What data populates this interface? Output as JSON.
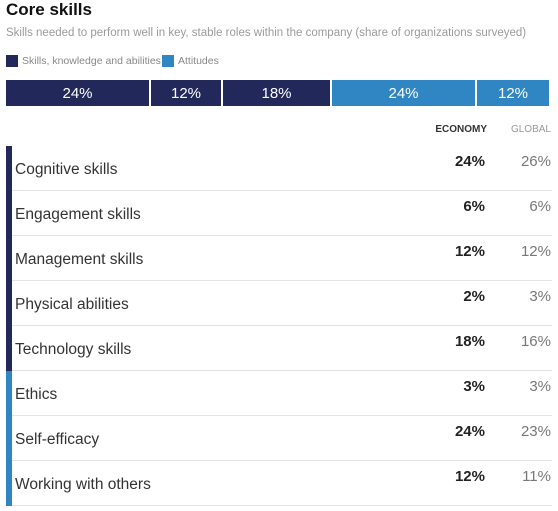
{
  "colors": {
    "skills": "#22295a",
    "attitudes": "#2f86c3"
  },
  "header": {
    "title": "Core skills",
    "subtitle": "Skills needed to perform well in key, stable roles within the company (share of organizations surveyed)"
  },
  "legend": [
    {
      "label": "Skills, knowledge and abilities",
      "color": "#22295a"
    },
    {
      "label": "Attitudes",
      "color": "#2f86c3"
    }
  ],
  "columns": {
    "economy": "ECONOMY",
    "global": "GLOBAL"
  },
  "chart_data": [
    {
      "type": "bar",
      "subtype": "stacked-horizontal",
      "segments": [
        {
          "label": "24%",
          "value": 24,
          "group": "skills"
        },
        {
          "label": "12%",
          "value": 12,
          "group": "skills"
        },
        {
          "label": "18%",
          "value": 18,
          "group": "skills"
        },
        {
          "label": "24%",
          "value": 24,
          "group": "attitudes"
        },
        {
          "label": "12%",
          "value": 12,
          "group": "attitudes"
        }
      ]
    },
    {
      "type": "table",
      "columns": [
        "ECONOMY",
        "GLOBAL"
      ],
      "rows": [
        {
          "name": "Cognitive skills",
          "group": "skills",
          "economy": "24%",
          "global": "26%"
        },
        {
          "name": "Engagement skills",
          "group": "skills",
          "economy": "6%",
          "global": "6%"
        },
        {
          "name": "Management skills",
          "group": "skills",
          "economy": "12%",
          "global": "12%"
        },
        {
          "name": "Physical abilities",
          "group": "skills",
          "economy": "2%",
          "global": "3%"
        },
        {
          "name": "Technology skills",
          "group": "skills",
          "economy": "18%",
          "global": "16%"
        },
        {
          "name": "Ethics",
          "group": "attitudes",
          "economy": "3%",
          "global": "3%"
        },
        {
          "name": "Self-efficacy",
          "group": "attitudes",
          "economy": "24%",
          "global": "23%"
        },
        {
          "name": "Working with others",
          "group": "attitudes",
          "economy": "12%",
          "global": "11%"
        }
      ]
    }
  ]
}
